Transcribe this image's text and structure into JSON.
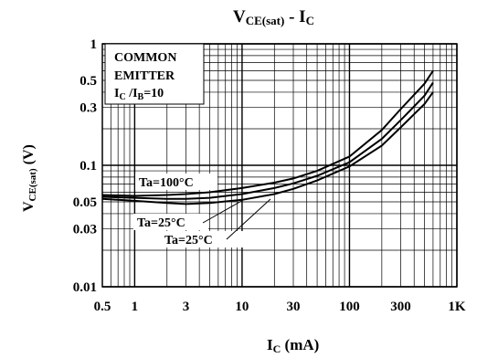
{
  "chart_data": {
    "type": "line",
    "title": {
      "main": "V",
      "main_sub": "CE(sat)",
      "sep": " - I",
      "sep_sub": "C"
    },
    "xlabel": {
      "main": "I",
      "sub": "C",
      "rest": "  (mA)"
    },
    "ylabel": {
      "main": "V",
      "sub": "CE(sat)",
      "rest": " (V)"
    },
    "x_scale": "log",
    "y_scale": "log",
    "xlim": [
      0.5,
      1000
    ],
    "ylim": [
      0.01,
      1
    ],
    "x_ticks": [
      {
        "v": 0.5,
        "label": "0.5"
      },
      {
        "v": 1,
        "label": "1"
      },
      {
        "v": 3,
        "label": "3"
      },
      {
        "v": 10,
        "label": "10"
      },
      {
        "v": 30,
        "label": "30"
      },
      {
        "v": 100,
        "label": "100"
      },
      {
        "v": 300,
        "label": "300"
      },
      {
        "v": 1000,
        "label": "1K"
      }
    ],
    "y_ticks": [
      {
        "v": 0.01,
        "label": "0.01"
      },
      {
        "v": 0.03,
        "label": "0.03"
      },
      {
        "v": 0.05,
        "label": "0.05"
      },
      {
        "v": 0.1,
        "label": "0.1"
      },
      {
        "v": 0.3,
        "label": "0.3"
      },
      {
        "v": 0.5,
        "label": "0.5"
      },
      {
        "v": 1,
        "label": "1"
      }
    ],
    "grid": true,
    "legend_box": {
      "line1": "COMMON",
      "line2": "EMITTER",
      "cond_main": "I",
      "cond_sub1": "C",
      "cond_mid": " /I",
      "cond_sub2": "B",
      "cond_end": "=10"
    },
    "series": [
      {
        "name": "Ta=100°C",
        "x": [
          0.5,
          1,
          2,
          3,
          5,
          10,
          20,
          30,
          50,
          100,
          200,
          300,
          500,
          600
        ],
        "y": [
          0.057,
          0.056,
          0.057,
          0.058,
          0.06,
          0.065,
          0.072,
          0.078,
          0.09,
          0.118,
          0.195,
          0.29,
          0.47,
          0.6
        ]
      },
      {
        "name": "Ta=25°C",
        "x": [
          0.5,
          1,
          2,
          3,
          5,
          10,
          20,
          30,
          50,
          100,
          200,
          300,
          500,
          600
        ],
        "y": [
          0.055,
          0.054,
          0.053,
          0.053,
          0.054,
          0.058,
          0.065,
          0.071,
          0.082,
          0.106,
          0.165,
          0.235,
          0.375,
          0.48
        ]
      },
      {
        "name": "Ta=25°C",
        "x": [
          0.5,
          1,
          2,
          3,
          5,
          10,
          20,
          30,
          50,
          100,
          200,
          300,
          500,
          600
        ],
        "y": [
          0.053,
          0.051,
          0.049,
          0.048,
          0.049,
          0.052,
          0.058,
          0.064,
          0.075,
          0.098,
          0.145,
          0.205,
          0.32,
          0.4
        ]
      }
    ],
    "curve_labels": [
      "Ta=100°C",
      "Ta=25°C",
      "Ta=25°C"
    ]
  }
}
